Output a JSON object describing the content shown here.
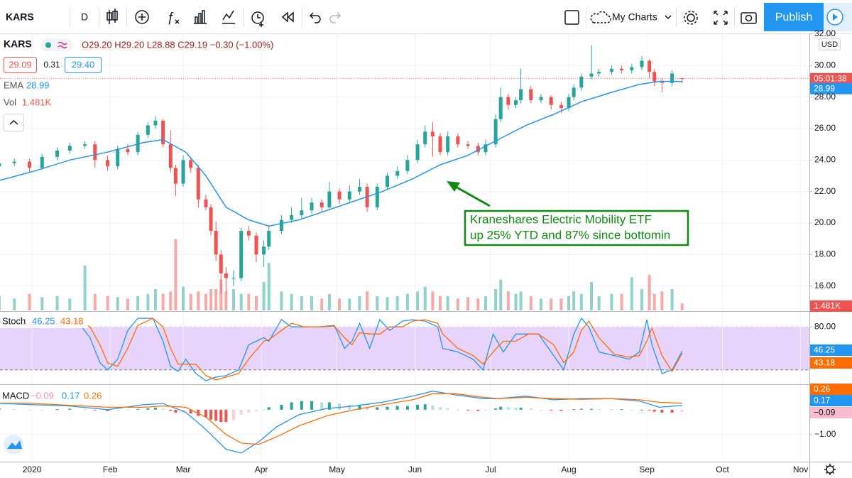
{
  "toolbar": {
    "symbol": "KARS",
    "interval": "D",
    "layouts": "My Charts",
    "publish": "Publish"
  },
  "legend": {
    "symbol": "KARS",
    "ohlc": "O29.20 H29.20 L28.88 C29.19 −0.30 (−1.00%)",
    "bid": "29.09",
    "spread": "0.31",
    "ask": "29.40",
    "ema_label": "EMA",
    "vol_label": "Vol",
    "vol_value": "1.481K",
    "stoch_label": "Stoch",
    "macd_label": "MACD",
    "macd_hist": "−0.09"
  },
  "price_axis": {
    "currency": "USD",
    "countdown": "05:01:38"
  },
  "chart_data": [
    {
      "type": "candlestick",
      "x": [
        -13,
        -7,
        -1,
        4,
        10,
        15,
        21,
        25,
        30,
        34,
        38,
        42,
        46,
        49,
        52,
        55,
        57,
        60,
        63,
        66,
        69,
        71,
        73,
        75,
        77,
        80,
        83,
        86,
        89,
        92,
        94,
        99,
        103,
        107,
        111,
        115,
        118,
        122,
        126,
        130,
        133,
        137,
        141,
        145,
        149,
        153,
        156,
        159,
        162,
        165,
        169,
        173,
        177,
        180,
        184,
        186,
        189,
        192,
        194,
        198,
        202,
        206,
        210,
        213,
        215,
        218,
        222,
        225,
        230,
        234,
        238,
        242,
        245,
        247,
        250,
        254,
        258
      ],
      "open": [
        23.6,
        23.8,
        23.9,
        23.5,
        24.2,
        24.6,
        24.9,
        25.0,
        24.0,
        23.6,
        24.7,
        24.5,
        25.6,
        26.2,
        26.5,
        25.0,
        23.5,
        22.5,
        24.0,
        23.5,
        21.5,
        21.0,
        19.5,
        18.0,
        16.8,
        16.5,
        16.5,
        19.5,
        19.2,
        18.0,
        18.5,
        19.5,
        20.2,
        20.5,
        20.8,
        21.3,
        21.0,
        22.0,
        21.5,
        22.0,
        22.3,
        21.0,
        22.3,
        23.0,
        23.3,
        24.0,
        25.0,
        25.8,
        25.5,
        24.5,
        25.5,
        25.0,
        24.9,
        24.5,
        25.0,
        26.6,
        28.0,
        27.5,
        27.8,
        28.5,
        27.8,
        28.0,
        27.5,
        27.3,
        28.0,
        28.6,
        29.3,
        29.5,
        29.6,
        29.8,
        29.7,
        29.9,
        30.3,
        29.6,
        29.0,
        28.9,
        29.2
      ],
      "high": [
        24.0,
        24.1,
        24.1,
        24.4,
        24.8,
        25.1,
        25.2,
        25.2,
        24.3,
        24.9,
        25.0,
        25.8,
        26.4,
        26.8,
        26.6,
        25.9,
        23.7,
        24.3,
        24.2,
        23.7,
        21.8,
        21.2,
        20.1,
        18.3,
        17.2,
        17.0,
        19.7,
        19.8,
        19.4,
        18.9,
        19.8,
        20.5,
        21.0,
        21.6,
        21.6,
        21.5,
        22.6,
        22.2,
        22.4,
        22.8,
        22.5,
        22.5,
        23.2,
        23.6,
        24.3,
        25.3,
        26.2,
        26.4,
        25.7,
        25.8,
        25.7,
        25.2,
        25.1,
        25.3,
        26.9,
        28.6,
        28.2,
        28.0,
        29.8,
        28.7,
        28.2,
        28.1,
        27.7,
        28.2,
        28.8,
        29.5,
        31.3,
        29.8,
        30.0,
        30.0,
        30.1,
        30.6,
        30.4,
        29.8,
        29.2,
        29.7,
        29.2
      ],
      "low": [
        23.4,
        23.6,
        23.2,
        23.4,
        24.0,
        24.4,
        24.7,
        23.5,
        23.3,
        23.4,
        24.3,
        24.3,
        25.4,
        26.0,
        24.8,
        23.2,
        21.7,
        22.3,
        23.2,
        21.0,
        20.8,
        19.2,
        17.6,
        15.5,
        15.6,
        16.0,
        16.3,
        18.9,
        17.5,
        17.2,
        18.3,
        19.3,
        20.0,
        20.3,
        20.6,
        20.7,
        20.8,
        21.2,
        21.3,
        21.8,
        20.7,
        20.8,
        22.1,
        22.8,
        23.1,
        23.8,
        24.8,
        24.2,
        24.3,
        24.3,
        24.8,
        24.7,
        24.3,
        24.3,
        24.8,
        26.4,
        27.2,
        27.3,
        27.6,
        27.6,
        27.6,
        27.2,
        27.0,
        27.1,
        27.8,
        28.4,
        29.1,
        29.3,
        29.4,
        29.5,
        29.5,
        29.7,
        29.2,
        28.7,
        28.3,
        28.7,
        28.88
      ],
      "close": [
        23.8,
        23.9,
        23.5,
        24.2,
        24.6,
        24.9,
        25.0,
        24.0,
        23.6,
        24.7,
        24.5,
        25.6,
        26.2,
        26.5,
        25.0,
        23.5,
        22.5,
        24.0,
        23.5,
        21.5,
        21.0,
        19.5,
        18.0,
        16.8,
        16.5,
        16.5,
        19.5,
        19.2,
        18.0,
        18.5,
        19.5,
        20.2,
        20.5,
        20.8,
        21.3,
        21.0,
        22.0,
        21.5,
        22.0,
        22.3,
        21.0,
        22.3,
        23.0,
        23.3,
        24.0,
        25.0,
        25.8,
        25.5,
        24.5,
        25.5,
        25.0,
        24.9,
        24.5,
        25.0,
        26.6,
        28.0,
        27.5,
        27.8,
        28.5,
        27.8,
        28.0,
        27.5,
        27.3,
        28.0,
        28.6,
        29.3,
        29.5,
        29.6,
        29.8,
        29.7,
        29.9,
        30.3,
        29.6,
        29.0,
        28.9,
        29.5,
        29.19
      ],
      "volume": [
        3000,
        2500,
        3500,
        2800,
        3000,
        2500,
        9500,
        3500,
        3000,
        2800,
        2500,
        3000,
        3500,
        4500,
        3500,
        4000,
        15000,
        5000,
        3500,
        4000,
        3500,
        4500,
        4500,
        6500,
        4000,
        4500,
        3500,
        3500,
        3000,
        6000,
        10000,
        4000,
        3500,
        3000,
        3000,
        2500,
        3500,
        2500,
        2500,
        3000,
        4000,
        3000,
        2800,
        3000,
        3500,
        4000,
        5000,
        4000,
        3000,
        3000,
        2500,
        2800,
        2500,
        3000,
        4500,
        6500,
        4000,
        3500,
        4000,
        3000,
        2500,
        2500,
        2500,
        3000,
        4000,
        3500,
        6000,
        3000,
        3500,
        3500,
        7000,
        4500,
        7500,
        3500,
        4000,
        4500,
        1481
      ],
      "volume_lim": [
        0,
        15000
      ],
      "up_color": "#26a69a",
      "down_color": "#ef5350",
      "ema": {
        "color": "#2196f3",
        "x": [
          -13,
          1,
          15,
          30,
          44,
          52,
          61,
          69,
          77,
          86,
          94,
          106,
          117,
          128,
          139,
          151,
          162,
          173,
          185,
          196,
          207,
          218,
          230,
          241,
          249,
          258
        ],
        "values": [
          22.7,
          23.3,
          24.0,
          24.5,
          25.1,
          25.3,
          24.5,
          23.0,
          21.0,
          20.2,
          19.8,
          20.2,
          20.8,
          21.4,
          22.0,
          22.8,
          23.7,
          24.3,
          25.3,
          26.2,
          26.9,
          27.7,
          28.3,
          28.8,
          29.0,
          28.99
        ]
      },
      "xlim": [
        -12.7,
        308.5
      ],
      "xticks": [
        {
          "value": 0,
          "label": "2020"
        },
        {
          "value": 31,
          "label": "Feb"
        },
        {
          "value": 60,
          "label": "Mar"
        },
        {
          "value": 91,
          "label": "Apr"
        },
        {
          "value": 121,
          "label": "May"
        },
        {
          "value": 152,
          "label": "Jun"
        },
        {
          "value": 182,
          "label": "Jul"
        },
        {
          "value": 213,
          "label": "Aug"
        },
        {
          "value": 244,
          "label": "Sep"
        },
        {
          "value": 274,
          "label": "Oct"
        },
        {
          "value": 305,
          "label": "Nov"
        }
      ],
      "ylim": [
        14.45,
        32.0
      ],
      "yticks": [
        {
          "value": 32,
          "label": "32.00"
        },
        {
          "value": 30,
          "label": "30.00"
        },
        {
          "value": 28,
          "label": "28.00"
        },
        {
          "value": 26,
          "label": "26.00"
        },
        {
          "value": 24,
          "label": "24.00"
        },
        {
          "value": 22,
          "label": "22.00"
        },
        {
          "value": 20,
          "label": "20.00"
        },
        {
          "value": 18,
          "label": "18.00"
        },
        {
          "value": 16,
          "label": "16.00"
        }
      ],
      "grid": true,
      "annotation": [
        "Kraneshares Electric Mobility ETF",
        "up 25% YTD and 87% since bottomin"
      ]
    },
    {
      "type": "line",
      "x": [
        -13,
        -1,
        10,
        18,
        23,
        27,
        30,
        34,
        38,
        42,
        48,
        52,
        55,
        58,
        61,
        65,
        69,
        73,
        77,
        82,
        86,
        92,
        94,
        99,
        103,
        108,
        114,
        120,
        124,
        127,
        130,
        134,
        138,
        142,
        147,
        151,
        156,
        161,
        163,
        169,
        175,
        179,
        183,
        187,
        192,
        197,
        201,
        207,
        211,
        215,
        218,
        221,
        225,
        231,
        237,
        241,
        244,
        246,
        250,
        254,
        258
      ],
      "series": [
        {
          "color": "#2196f3",
          "values": [
            85,
            82,
            85,
            88,
            65,
            30,
            20,
            35,
            75,
            92,
            92,
            60,
            25,
            18,
            35,
            15,
            5,
            10,
            12,
            20,
            55,
            65,
            60,
            90,
            80,
            80,
            80,
            82,
            50,
            60,
            85,
            50,
            90,
            75,
            88,
            90,
            88,
            80,
            50,
            45,
            35,
            20,
            70,
            45,
            70,
            70,
            70,
            40,
            20,
            70,
            92,
            80,
            45,
            40,
            35,
            45,
            90,
            55,
            15,
            20,
            46.25
          ]
        },
        {
          "color": "#ff6d00",
          "values": [
            86,
            84,
            83,
            87,
            80,
            55,
            30,
            25,
            50,
            82,
            92,
            80,
            50,
            28,
            28,
            28,
            12,
            6,
            10,
            15,
            35,
            60,
            62,
            75,
            85,
            80,
            80,
            81,
            65,
            55,
            72,
            70,
            70,
            80,
            80,
            88,
            90,
            85,
            70,
            50,
            40,
            28,
            45,
            60,
            60,
            70,
            70,
            55,
            30,
            45,
            75,
            88,
            65,
            42,
            38,
            40,
            60,
            78,
            40,
            18,
            43.18
          ]
        }
      ],
      "ylim": [
        1,
        100
      ],
      "yticks": [
        {
          "value": 80,
          "label": "80.00"
        }
      ],
      "bands": [
        20,
        80
      ],
      "band_color": "#e8d3fb",
      "grid": true
    },
    {
      "type": "macd",
      "x": [
        -13,
        1,
        15,
        30,
        44,
        52,
        61,
        69,
        77,
        83,
        90,
        97,
        106,
        117,
        128,
        139,
        151,
        159,
        168,
        179,
        185,
        196,
        207,
        218,
        230,
        241,
        249,
        258
      ],
      "series": [
        {
          "color": "#2196f3",
          "values": [
            0.25,
            0.2,
            0.15,
            0.0,
            0.2,
            0.25,
            -0.1,
            -0.8,
            -1.6,
            -1.75,
            -1.3,
            -0.7,
            -0.2,
            0.05,
            0.15,
            0.3,
            0.55,
            0.75,
            0.6,
            0.45,
            0.45,
            0.55,
            0.4,
            0.45,
            0.45,
            0.35,
            0.1,
            0.17
          ]
        },
        {
          "color": "#ff6d00",
          "values": [
            0.3,
            0.25,
            0.18,
            0.1,
            0.1,
            0.15,
            0.1,
            -0.3,
            -1.0,
            -1.35,
            -1.4,
            -1.1,
            -0.65,
            -0.25,
            0.0,
            0.2,
            0.4,
            0.65,
            0.65,
            0.5,
            0.45,
            0.5,
            0.45,
            0.42,
            0.45,
            0.4,
            0.3,
            0.26
          ]
        }
      ],
      "histogram": [
        0.05,
        0.03,
        -0.02,
        0.0,
        0.02,
        0.04,
        0.03,
        -0.03,
        -0.06,
        -0.05,
        -0.02,
        0.03,
        0.06,
        0.08,
        0.04,
        -0.05,
        -0.12,
        -0.1,
        -0.15,
        -0.25,
        -0.3,
        -0.4,
        -0.45,
        -0.5,
        -0.5,
        -0.4,
        -0.2,
        -0.1,
        -0.05,
        0.0,
        0.1,
        0.2,
        0.3,
        0.35,
        0.35,
        0.3,
        0.3,
        0.25,
        0.2,
        0.2,
        0.1,
        0.1,
        0.12,
        0.15,
        0.15,
        0.2,
        0.22,
        0.18,
        0.1,
        0.05,
        0.0,
        -0.03,
        -0.05,
        -0.03,
        0.05,
        0.12,
        0.1,
        0.08,
        0.08,
        0.05,
        0.0,
        -0.03,
        -0.05,
        -0.02,
        0.02,
        0.04,
        0.04,
        0.03,
        0.02,
        0.02,
        0.0,
        0.0,
        -0.03,
        -0.08,
        -0.12,
        -0.12,
        -0.09
      ],
      "ylim": [
        -2.1,
        1.0
      ],
      "yticks": [
        {
          "value": -1,
          "label": "−1.00"
        }
      ],
      "grid": true
    }
  ]
}
